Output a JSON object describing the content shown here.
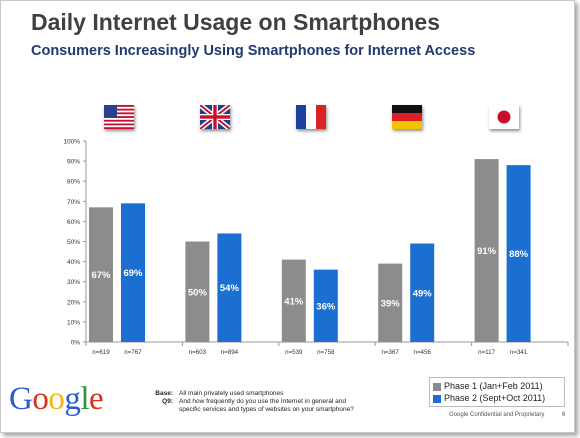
{
  "title": "Daily Internet Usage on Smartphones",
  "subtitle": "Consumers Increasingly Using Smartphones for Internet Access",
  "colors": {
    "phase1": "#8c8c8c",
    "phase2": "#1b6fd1",
    "axis": "#999999",
    "title": "#404040",
    "subtitle": "#1f3a6e"
  },
  "flags": [
    {
      "country": "United States",
      "icon": "us-flag-icon"
    },
    {
      "country": "United Kingdom",
      "icon": "uk-flag-icon"
    },
    {
      "country": "France",
      "icon": "france-flag-icon"
    },
    {
      "country": "Germany",
      "icon": "germany-flag-icon"
    },
    {
      "country": "Japan",
      "icon": "japan-flag-icon"
    }
  ],
  "chart_data": {
    "type": "bar",
    "categories": [
      "US",
      "UK",
      "France",
      "Germany",
      "Japan"
    ],
    "series": [
      {
        "name": "Phase 1 (Jan+Feb 2011)",
        "values": [
          67,
          50,
          41,
          39,
          91
        ],
        "labels": [
          "67%",
          "50%",
          "41%",
          "39%",
          "91%"
        ],
        "n": [
          "n=619",
          "n=603",
          "n=539",
          "n=367",
          "n=117"
        ]
      },
      {
        "name": "Phase 2 (Sept+Oct 2011)",
        "values": [
          69,
          54,
          36,
          49,
          88
        ],
        "labels": [
          "69%",
          "54%",
          "36%",
          "49%",
          "88%"
        ],
        "n": [
          "n=767",
          "n=894",
          "n=758",
          "n=456",
          "n=341"
        ]
      }
    ],
    "ylim": [
      0,
      100
    ],
    "y_ticks": [
      "0%",
      "10%",
      "20%",
      "30%",
      "40%",
      "50%",
      "60%",
      "70%",
      "80%",
      "90%",
      "100%"
    ],
    "grid": false,
    "legend_position": "bottom-right"
  },
  "logo_letters": [
    {
      "ch": "G",
      "color": "#2a5bd7"
    },
    {
      "ch": "o",
      "color": "#d9301f"
    },
    {
      "ch": "o",
      "color": "#f2b90c"
    },
    {
      "ch": "g",
      "color": "#2a5bd7"
    },
    {
      "ch": "l",
      "color": "#239a3b"
    },
    {
      "ch": "e",
      "color": "#d9301f"
    }
  ],
  "footnote": {
    "base_label": "Base:",
    "base_text": "All main privately used smartphones",
    "q_label": "Q9:",
    "q_text": "And how frequently do you use the Internet in general and specific services and types of websites on your smartphone?"
  },
  "confidential": "Google Confidential and Proprietary",
  "page_number": "6"
}
